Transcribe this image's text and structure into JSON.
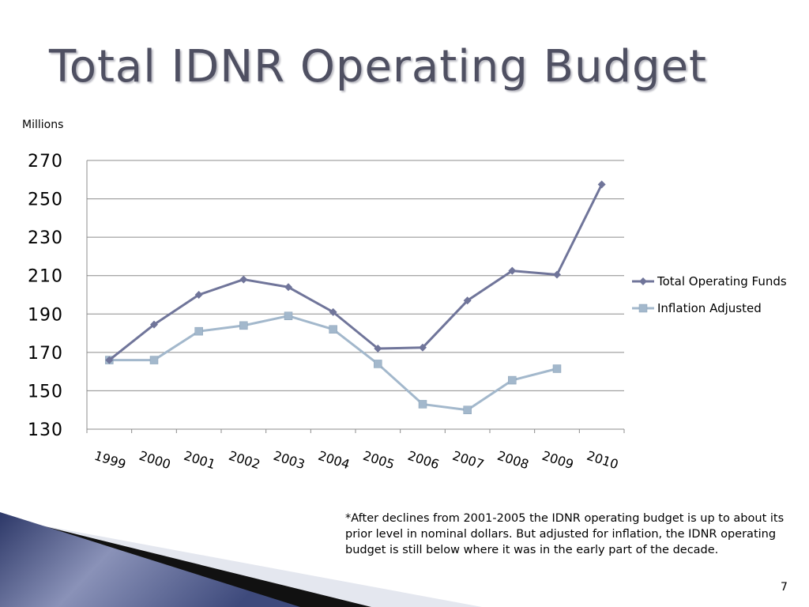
{
  "slide": {
    "title": "Total IDNR Operating Budget",
    "y_unit": "Millions",
    "footnote": "*After declines from 2001-2005 the IDNR operating budget is up to about its prior level in nominal dollars. But adjusted for inflation, the IDNR operating budget is still below where it was in the early part of the decade.",
    "page_number": "7"
  },
  "chart_data": {
    "type": "line",
    "title": "",
    "xlabel": "",
    "ylabel": "Millions",
    "ylim": [
      130,
      270
    ],
    "y_ticks": [
      130,
      150,
      170,
      190,
      210,
      230,
      250,
      270
    ],
    "grid": true,
    "legend_position": "right",
    "categories": [
      "1999",
      "2000",
      "2001",
      "2002",
      "2003",
      "2004",
      "2005",
      "2006",
      "2007",
      "2008",
      "2009",
      "2010"
    ],
    "series": [
      {
        "name": "Total Operating Funds",
        "marker": "diamond",
        "color": "#70759a",
        "values": [
          166,
          184.5,
          200,
          208,
          204,
          191,
          172,
          172.5,
          197,
          212.5,
          210.5,
          257.5
        ]
      },
      {
        "name": "Inflation Adjusted",
        "marker": "square",
        "color": "#a3b8cc",
        "values": [
          166,
          166,
          181,
          184,
          189,
          182,
          164,
          143,
          140,
          155.5,
          161.5,
          null
        ]
      }
    ]
  },
  "colors": {
    "title": "#4f5062",
    "gridline": "#8c8c8c",
    "decor_blue": "#3f4c80"
  }
}
